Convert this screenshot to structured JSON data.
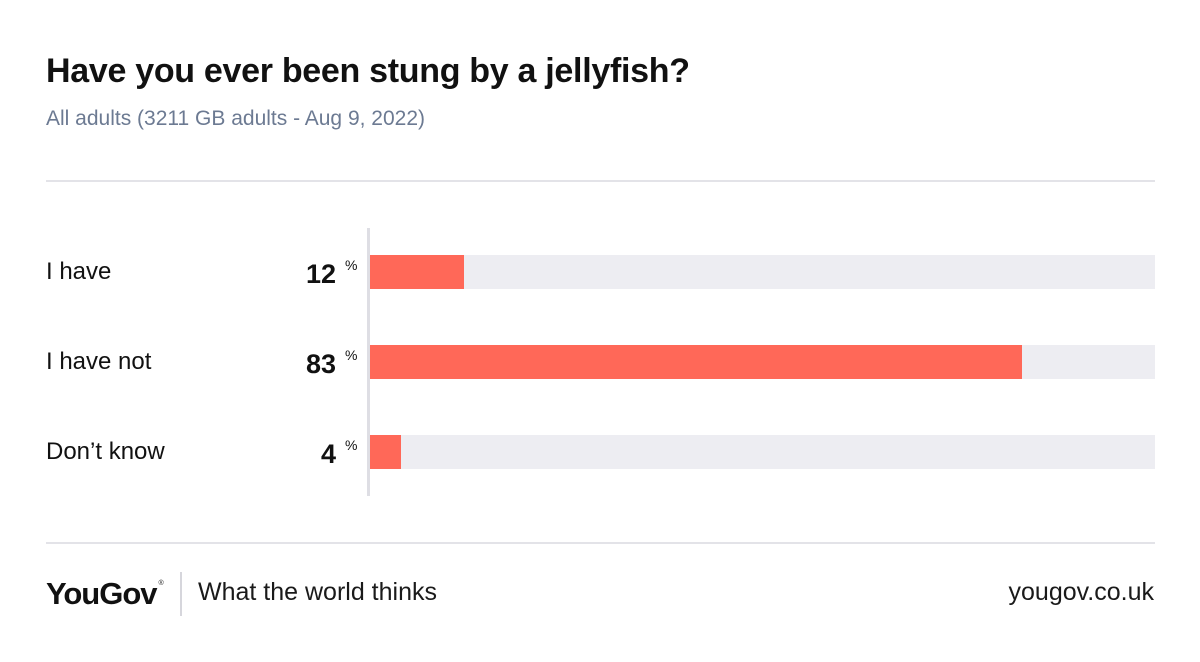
{
  "header": {
    "title": "Have you ever been stung by a jellyfish?",
    "subtitle": "All adults (3211 GB adults - Aug 9, 2022)"
  },
  "chart_data": {
    "type": "bar",
    "orientation": "horizontal",
    "title": "Have you ever been stung by a jellyfish?",
    "subtitle": "All adults (3211 GB adults - Aug 9, 2022)",
    "categories": [
      "I have",
      "I have not",
      "Don’t know"
    ],
    "values": [
      12,
      83,
      4
    ],
    "unit": "%",
    "xlim": [
      0,
      100
    ],
    "grid": false,
    "legend": "none",
    "colors": {
      "bar": "#ff6858",
      "track": "#ededf2"
    }
  },
  "footer": {
    "logo_text": "YouGov",
    "logo_tm": "®",
    "tagline": "What the world thinks",
    "url": "yougov.co.uk"
  }
}
